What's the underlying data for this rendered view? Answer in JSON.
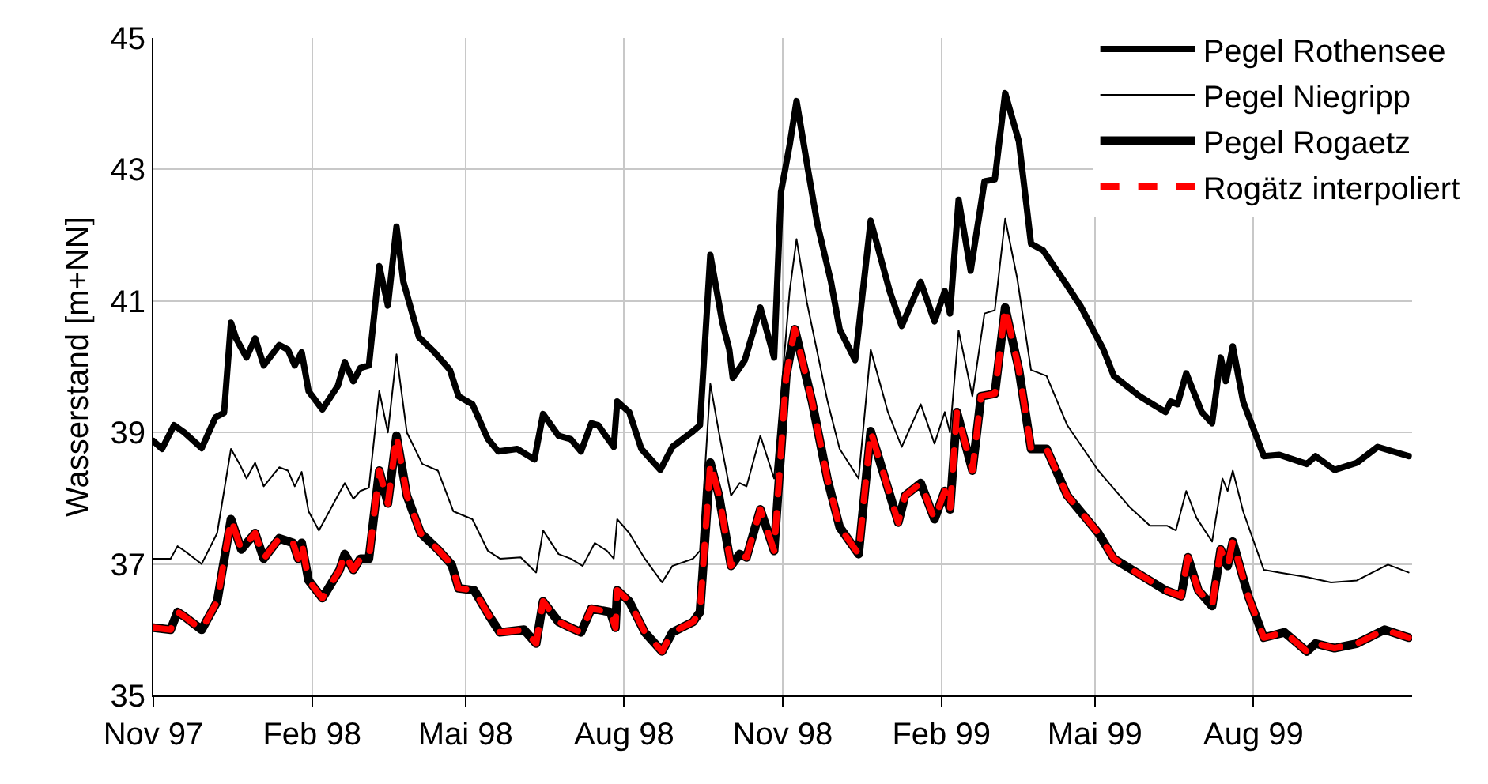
{
  "chart_data": {
    "type": "line",
    "ylabel": "Wasserstand [m+NN]",
    "xlim": [
      "1997-11-01",
      "1999-11-01"
    ],
    "xticks": [
      {
        "value": "1997-11-01",
        "label": "Nov 97"
      },
      {
        "value": "1998-02-01",
        "label": "Feb 98"
      },
      {
        "value": "1998-05-01",
        "label": "Mai 98"
      },
      {
        "value": "1998-08-01",
        "label": "Aug 98"
      },
      {
        "value": "1998-11-01",
        "label": "Nov 98"
      },
      {
        "value": "1999-02-01",
        "label": "Feb 99"
      },
      {
        "value": "1999-05-01",
        "label": "Mai 99"
      },
      {
        "value": "1999-08-01",
        "label": "Aug 99"
      }
    ],
    "ylim": [
      35,
      45
    ],
    "yticks": [
      35,
      37,
      39,
      41,
      43,
      45
    ],
    "grid": true,
    "legend": "top right",
    "marker": "none",
    "series": [
      {
        "name": "Pegel Rothensee",
        "color": "#000000",
        "line_style": "solid",
        "x": [
          "1997-11-01",
          "1997-11-06",
          "1997-11-13",
          "1997-11-19",
          "1997-11-29",
          "1997-12-07",
          "1997-12-12",
          "1997-12-16",
          "1997-12-19",
          "1997-12-25",
          "1997-12-30",
          "1998-01-04",
          "1998-01-13",
          "1998-01-18",
          "1998-01-22",
          "1998-01-26",
          "1998-01-30",
          "1998-02-07",
          "1998-02-16",
          "1998-02-20",
          "1998-02-25",
          "1998-03-01",
          "1998-03-06",
          "1998-03-12",
          "1998-03-17",
          "1998-03-22",
          "1998-03-26",
          "1998-04-04",
          "1998-04-13",
          "1998-04-22",
          "1998-04-27",
          "1998-05-05",
          "1998-05-14",
          "1998-05-20",
          "1998-05-31",
          "1998-06-10",
          "1998-06-15",
          "1998-06-24",
          "1998-07-01",
          "1998-07-07",
          "1998-07-13",
          "1998-07-17",
          "1998-07-26",
          "1998-07-28",
          "1998-08-04",
          "1998-08-11",
          "1998-08-22",
          "1998-08-29",
          "1998-09-10",
          "1998-09-14",
          "1998-09-20",
          "1998-09-27",
          "1998-10-01",
          "1998-10-03",
          "1998-10-10",
          "1998-10-19",
          "1998-10-27",
          "1998-10-31",
          "1998-11-05",
          "1998-11-09",
          "1998-11-16",
          "1998-11-21",
          "1998-11-29",
          "1998-12-04",
          "1998-12-13",
          "1998-12-22",
          "1999-01-02",
          "1999-01-09",
          "1999-01-20",
          "1999-01-28",
          "1999-02-03",
          "1999-02-06",
          "1999-02-11",
          "1999-02-18",
          "1999-02-26",
          "1999-03-04",
          "1999-03-10",
          "1999-03-18",
          "1999-03-25",
          "1999-04-01",
          "1999-04-14",
          "1999-04-23",
          "1999-05-06",
          "1999-05-12",
          "1999-05-27",
          "1999-06-11",
          "1999-06-14",
          "1999-06-18",
          "1999-06-23",
          "1999-07-02",
          "1999-07-08",
          "1999-07-13",
          "1999-07-16",
          "1999-07-20",
          "1999-07-26",
          "1999-08-07",
          "1999-08-16",
          "1999-09-01",
          "1999-09-06",
          "1999-09-17",
          "1999-09-30",
          "1999-10-12",
          "1999-10-30"
        ],
        "values": [
          38.87,
          38.75,
          39.11,
          39.0,
          38.76,
          39.23,
          39.3,
          40.67,
          40.43,
          40.14,
          40.43,
          40.02,
          40.33,
          40.26,
          40.02,
          40.22,
          39.63,
          39.35,
          39.71,
          40.07,
          39.78,
          39.98,
          40.02,
          41.53,
          40.93,
          42.13,
          41.29,
          40.45,
          40.22,
          39.95,
          39.55,
          39.43,
          38.9,
          38.71,
          38.75,
          38.59,
          39.28,
          38.95,
          38.9,
          38.71,
          39.14,
          39.11,
          38.78,
          39.47,
          39.31,
          38.75,
          38.43,
          38.78,
          39.02,
          39.11,
          41.7,
          40.67,
          40.26,
          39.83,
          40.1,
          40.9,
          40.14,
          42.66,
          43.37,
          44.04,
          42.94,
          42.18,
          41.29,
          40.57,
          40.1,
          42.22,
          41.15,
          40.62,
          41.29,
          40.69,
          41.15,
          40.81,
          42.54,
          41.46,
          42.82,
          42.85,
          44.16,
          43.42,
          41.87,
          41.77,
          41.27,
          40.91,
          40.26,
          39.86,
          39.55,
          39.31,
          39.47,
          39.43,
          39.9,
          39.31,
          39.14,
          40.14,
          39.78,
          40.31,
          39.47,
          38.64,
          38.66,
          38.52,
          38.64,
          38.43,
          38.54,
          38.78,
          38.64
        ]
      },
      {
        "name": "Pegel Niegripp",
        "color": "#000000",
        "line_style": "solid",
        "x": [
          "1997-11-01",
          "1997-11-11",
          "1997-11-15",
          "1997-11-19",
          "1997-11-29",
          "1997-12-08",
          "1997-12-16",
          "1997-12-21",
          "1997-12-25",
          "1997-12-30",
          "1998-01-04",
          "1998-01-13",
          "1998-01-18",
          "1998-01-22",
          "1998-01-26",
          "1998-01-30",
          "1998-02-05",
          "1998-02-16",
          "1998-02-20",
          "1998-02-25",
          "1998-03-01",
          "1998-03-06",
          "1998-03-12",
          "1998-03-17",
          "1998-03-22",
          "1998-03-28",
          "1998-04-06",
          "1998-04-15",
          "1998-04-24",
          "1998-05-05",
          "1998-05-14",
          "1998-05-21",
          "1998-06-02",
          "1998-06-11",
          "1998-06-15",
          "1998-06-24",
          "1998-07-01",
          "1998-07-08",
          "1998-07-15",
          "1998-07-22",
          "1998-07-26",
          "1998-07-28",
          "1998-08-04",
          "1998-08-13",
          "1998-08-23",
          "1998-08-29",
          "1998-09-10",
          "1998-09-14",
          "1998-09-20",
          "1998-09-25",
          "1998-10-02",
          "1998-10-07",
          "1998-10-11",
          "1998-10-19",
          "1998-10-27",
          "1998-11-05",
          "1998-11-09",
          "1998-11-15",
          "1998-11-27",
          "1998-12-04",
          "1998-12-15",
          "1998-12-22",
          "1999-01-01",
          "1999-01-09",
          "1999-01-20",
          "1999-01-28",
          "1999-02-03",
          "1999-02-06",
          "1999-02-11",
          "1999-02-19",
          "1999-02-26",
          "1999-03-04",
          "1999-03-10",
          "1999-03-17",
          "1999-03-25",
          "1999-04-03",
          "1999-04-15",
          "1999-05-03",
          "1999-05-21",
          "1999-06-02",
          "1999-06-12",
          "1999-06-17",
          "1999-06-23",
          "1999-06-29",
          "1999-07-08",
          "1999-07-14",
          "1999-07-17",
          "1999-07-20",
          "1999-07-26",
          "1999-08-07",
          "1999-08-16",
          "1999-09-01",
          "1999-09-15",
          "1999-09-30",
          "1999-10-18",
          "1999-10-30"
        ],
        "values": [
          37.08,
          37.08,
          37.27,
          37.2,
          37.0,
          37.47,
          38.75,
          38.52,
          38.3,
          38.54,
          38.18,
          38.47,
          38.42,
          38.18,
          38.4,
          37.8,
          37.51,
          38.04,
          38.23,
          37.99,
          38.11,
          38.16,
          39.63,
          39.0,
          40.19,
          39.0,
          38.52,
          38.42,
          37.8,
          37.68,
          37.2,
          37.08,
          37.1,
          36.87,
          37.51,
          37.15,
          37.08,
          36.97,
          37.32,
          37.2,
          37.08,
          37.68,
          37.47,
          37.08,
          36.72,
          36.97,
          37.08,
          37.2,
          39.74,
          39.0,
          38.04,
          38.23,
          38.18,
          38.95,
          38.3,
          41.15,
          41.94,
          40.98,
          39.47,
          38.75,
          38.3,
          40.26,
          39.31,
          38.78,
          39.43,
          38.83,
          39.31,
          39.0,
          40.55,
          39.55,
          40.81,
          40.86,
          42.25,
          41.34,
          39.95,
          39.86,
          39.11,
          38.42,
          37.87,
          37.58,
          37.58,
          37.51,
          38.11,
          37.7,
          37.34,
          38.3,
          38.11,
          38.42,
          37.8,
          36.91,
          36.87,
          36.8,
          36.72,
          36.75,
          36.99,
          36.87
        ]
      },
      {
        "name": "Pegel Rogaetz",
        "color": "#000000",
        "line_style": "solid",
        "x": [
          "1997-11-01",
          "1997-11-11",
          "1997-11-15",
          "1997-11-19",
          "1997-11-29",
          "1997-12-08",
          "1997-12-16",
          "1997-12-22",
          "1997-12-30",
          "1998-01-04",
          "1998-01-13",
          "1998-01-21",
          "1998-01-24",
          "1998-01-26",
          "1998-01-30",
          "1998-02-07",
          "1998-02-17",
          "1998-02-20",
          "1998-02-25",
          "1998-03-01",
          "1998-03-06",
          "1998-03-12",
          "1998-03-17",
          "1998-03-22",
          "1998-03-28",
          "1998-04-05",
          "1998-04-15",
          "1998-04-23",
          "1998-04-27",
          "1998-05-06",
          "1998-05-15",
          "1998-05-21",
          "1998-06-04",
          "1998-06-11",
          "1998-06-15",
          "1998-06-24",
          "1998-07-01",
          "1998-07-07",
          "1998-07-13",
          "1998-07-24",
          "1998-07-27",
          "1998-07-28",
          "1998-08-04",
          "1998-08-13",
          "1998-08-23",
          "1998-08-29",
          "1998-09-10",
          "1998-09-14",
          "1998-09-20",
          "1998-09-25",
          "1998-10-02",
          "1998-10-07",
          "1998-10-11",
          "1998-10-19",
          "1998-10-27",
          "1998-11-03",
          "1998-11-08",
          "1998-11-18",
          "1998-11-27",
          "1998-12-04",
          "1998-12-15",
          "1998-12-22",
          "1999-01-07",
          "1999-01-11",
          "1999-01-20",
          "1999-01-28",
          "1999-02-03",
          "1999-02-06",
          "1999-02-10",
          "1999-02-19",
          "1999-02-24",
          "1999-03-04",
          "1999-03-10",
          "1999-03-18",
          "1999-03-25",
          "1999-04-03",
          "1999-04-15",
          "1999-05-03",
          "1999-05-12",
          "1999-05-27",
          "1999-06-11",
          "1999-06-20",
          "1999-06-24",
          "1999-06-30",
          "1999-07-08",
          "1999-07-13",
          "1999-07-17",
          "1999-07-20",
          "1999-07-29",
          "1999-08-07",
          "1999-08-19",
          "1999-09-01",
          "1999-09-06",
          "1999-09-17",
          "1999-09-30",
          "1999-10-16",
          "1999-10-30"
        ],
        "values": [
          36.03,
          36.0,
          36.27,
          36.2,
          36.0,
          36.43,
          37.68,
          37.22,
          37.47,
          37.08,
          37.39,
          37.32,
          37.08,
          37.32,
          36.75,
          36.48,
          36.91,
          37.15,
          36.91,
          37.08,
          37.08,
          38.42,
          37.92,
          38.95,
          38.04,
          37.47,
          37.22,
          36.99,
          36.63,
          36.6,
          36.2,
          35.96,
          36.0,
          35.79,
          36.43,
          36.12,
          36.03,
          35.96,
          36.32,
          36.27,
          36.03,
          36.6,
          36.43,
          35.96,
          35.67,
          35.96,
          36.12,
          36.27,
          38.54,
          38.04,
          36.97,
          37.15,
          37.1,
          37.83,
          37.2,
          39.86,
          40.57,
          39.47,
          38.28,
          37.56,
          37.15,
          39.02,
          37.63,
          38.04,
          38.23,
          37.68,
          38.11,
          37.83,
          39.31,
          38.42,
          39.55,
          39.59,
          40.9,
          39.95,
          38.75,
          38.75,
          38.04,
          37.47,
          37.08,
          36.84,
          36.6,
          36.51,
          37.1,
          36.6,
          36.36,
          37.22,
          36.97,
          37.34,
          36.51,
          35.88,
          35.96,
          35.67,
          35.79,
          35.72,
          35.79,
          36.0,
          35.88
        ]
      },
      {
        "name": "Rogätz interpoliert",
        "color": "#ff0000",
        "line_style": "dashed",
        "x": [
          "1997-11-01",
          "1997-11-11",
          "1997-11-15",
          "1997-11-19",
          "1997-11-29",
          "1997-12-08",
          "1997-12-16",
          "1997-12-22",
          "1997-12-30",
          "1998-01-04",
          "1998-01-13",
          "1998-01-21",
          "1998-01-24",
          "1998-01-26",
          "1998-01-30",
          "1998-02-07",
          "1998-02-17",
          "1998-02-20",
          "1998-02-25",
          "1998-03-01",
          "1998-03-06",
          "1998-03-12",
          "1998-03-17",
          "1998-03-22",
          "1998-03-28",
          "1998-04-05",
          "1998-04-15",
          "1998-04-23",
          "1998-04-27",
          "1998-05-06",
          "1998-05-15",
          "1998-05-21",
          "1998-06-04",
          "1998-06-11",
          "1998-06-15",
          "1998-06-24",
          "1998-07-01",
          "1998-07-07",
          "1998-07-13",
          "1998-07-24",
          "1998-07-27",
          "1998-07-28",
          "1998-08-04",
          "1998-08-13",
          "1998-08-23",
          "1998-08-29",
          "1998-09-10",
          "1998-09-14",
          "1998-09-20",
          "1998-09-25",
          "1998-10-02",
          "1998-10-07",
          "1998-10-11",
          "1998-10-19",
          "1998-10-27",
          "1998-11-03",
          "1998-11-08",
          "1998-11-18",
          "1998-11-27",
          "1998-12-04",
          "1998-12-15",
          "1998-12-22",
          "1999-01-07",
          "1999-01-11",
          "1999-01-20",
          "1999-01-28",
          "1999-02-03",
          "1999-02-06",
          "1999-02-10",
          "1999-02-19",
          "1999-02-24",
          "1999-03-04",
          "1999-03-10",
          "1999-03-18",
          "1999-03-25",
          "1999-04-03",
          "1999-04-15",
          "1999-05-03",
          "1999-05-12",
          "1999-05-27",
          "1999-06-11",
          "1999-06-20",
          "1999-06-24",
          "1999-06-30",
          "1999-07-08",
          "1999-07-13",
          "1999-07-17",
          "1999-07-20",
          "1999-07-29",
          "1999-08-07",
          "1999-08-19",
          "1999-09-01",
          "1999-09-06",
          "1999-09-17",
          "1999-09-30",
          "1999-10-16",
          "1999-10-30"
        ],
        "values": [
          36.03,
          36.0,
          36.27,
          36.2,
          36.0,
          36.43,
          37.68,
          37.22,
          37.47,
          37.08,
          37.39,
          37.32,
          37.08,
          37.32,
          36.75,
          36.48,
          36.91,
          37.15,
          36.91,
          37.08,
          37.08,
          38.42,
          37.92,
          38.95,
          38.04,
          37.47,
          37.22,
          36.99,
          36.63,
          36.6,
          36.2,
          35.96,
          36.0,
          35.79,
          36.43,
          36.12,
          36.03,
          35.96,
          36.32,
          36.27,
          36.03,
          36.6,
          36.43,
          35.96,
          35.67,
          35.96,
          36.12,
          36.27,
          38.54,
          38.04,
          36.97,
          37.15,
          37.1,
          37.83,
          37.2,
          39.86,
          40.57,
          39.47,
          38.28,
          37.56,
          37.15,
          39.02,
          37.63,
          38.04,
          38.23,
          37.68,
          38.11,
          37.83,
          39.31,
          38.42,
          39.55,
          39.59,
          40.9,
          39.95,
          38.75,
          38.75,
          38.04,
          37.47,
          37.08,
          36.84,
          36.6,
          36.51,
          37.1,
          36.6,
          36.36,
          37.22,
          36.97,
          37.34,
          36.51,
          35.88,
          35.96,
          35.67,
          35.79,
          35.72,
          35.79,
          36.0,
          35.88
        ]
      }
    ]
  }
}
